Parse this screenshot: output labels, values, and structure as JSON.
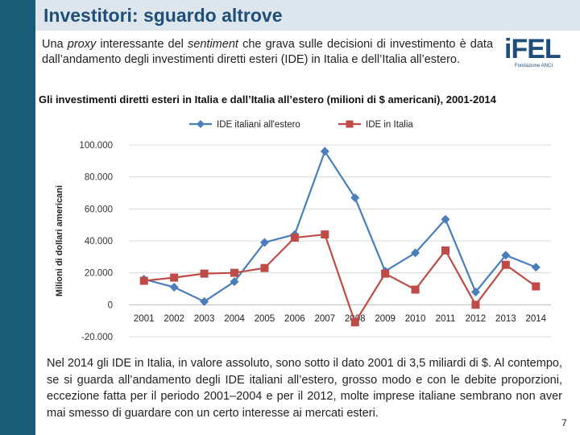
{
  "header": {
    "title": "Investitori: sguardo altrove"
  },
  "intro": {
    "part1": "Una ",
    "proxy": "proxy",
    "part2": " interessante del ",
    "sentiment": "sentiment",
    "part3": " che grava sulle decisioni di investimento è data dall’andamento degli investimenti diretti esteri (IDE) in Italia e dell’Italia all’estero."
  },
  "logo": {
    "text": "iFEL",
    "subtitle": "Fondazione ANCI"
  },
  "chart_data": {
    "type": "line",
    "title": "Gli investimenti diretti esteri in Italia e dall’Italia all’estero (milioni di $ americani), 2001-2014",
    "xlabel": "",
    "ylabel": "Milioni di dollari americani",
    "categories": [
      "2001",
      "2002",
      "2003",
      "2004",
      "2005",
      "2006",
      "2007",
      "2008",
      "2009",
      "2010",
      "2011",
      "2012",
      "2013",
      "2014"
    ],
    "ylim": [
      -20000,
      100000
    ],
    "yticks": [
      -20000,
      0,
      20000,
      40000,
      60000,
      80000,
      100000
    ],
    "ytick_labels": [
      "-20.000",
      "0",
      "20.000",
      "40.000",
      "60.000",
      "80.000",
      "100.000"
    ],
    "legend_position": "top",
    "series": [
      {
        "name": "IDE italiani all'estero",
        "color": "#4a7ebb",
        "marker": "diamond",
        "values": [
          16000,
          11000,
          2000,
          14500,
          39000,
          44000,
          96000,
          67000,
          21000,
          32500,
          53500,
          8000,
          31000,
          23500
        ]
      },
      {
        "name": "IDE in Italia",
        "color": "#be4b48",
        "marker": "square",
        "values": [
          15000,
          17000,
          19500,
          20000,
          23000,
          42000,
          44000,
          -11000,
          19500,
          9500,
          34000,
          0,
          25000,
          11500
        ]
      }
    ]
  },
  "bottom": {
    "text": "Nel 2014 gli IDE in Italia, in valore assoluto, sono sotto il dato 2001 di 3,5 miliardi di $. Al contempo, se si guarda all’andamento degli IDE italiani all’estero, grosso modo e con le debite proporzioni, eccezione fatta per il periodo 2001–2004 e per il 2012, molte imprese italiane sembrano non aver mai smesso di guardare con un certo interesse ai mercati esteri."
  },
  "page": {
    "number": "7"
  }
}
